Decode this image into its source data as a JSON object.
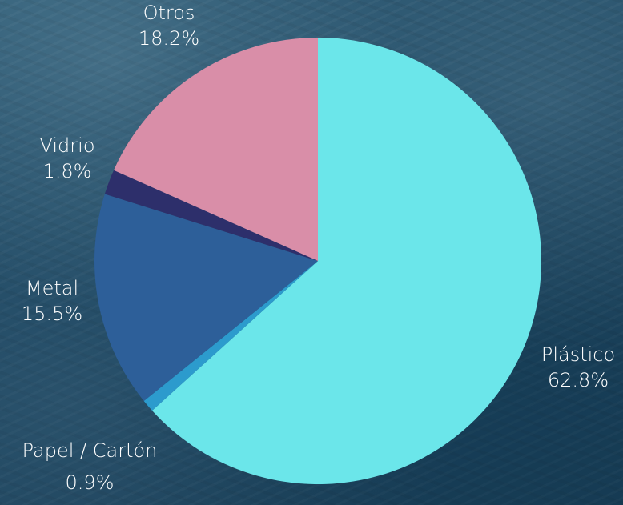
{
  "chart_data": {
    "type": "pie",
    "title": "",
    "categories": [
      "Plástico",
      "Papel / Cartón",
      "Metal",
      "Vidrio",
      "Otros"
    ],
    "values": [
      62.8,
      0.9,
      15.5,
      1.8,
      18.2
    ],
    "value_labels": [
      "62.8%",
      "0.9%",
      "15.5%",
      "1.8%",
      "18.2%"
    ],
    "colors": [
      "#6be6ea",
      "#2c9bcd",
      "#2d5f99",
      "#2d2f6b",
      "#d98ea8"
    ],
    "start_angle_deg": 0,
    "direction": "clockwise",
    "legend": "none",
    "labels": "outside"
  }
}
